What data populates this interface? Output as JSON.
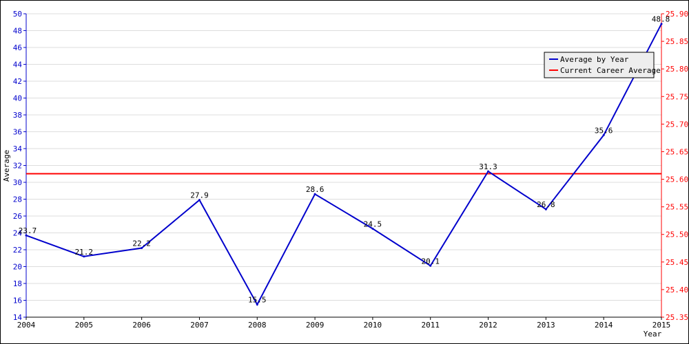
{
  "chart_data": {
    "type": "line",
    "title": "",
    "xlabel": "Year",
    "ylabel": "Average",
    "categories": [
      "2004",
      "2005",
      "2006",
      "2007",
      "2008",
      "2009",
      "2010",
      "2011",
      "2012",
      "2013",
      "2014",
      "2015"
    ],
    "y_ticks": [
      "14",
      "16",
      "18",
      "20",
      "22",
      "24",
      "26",
      "28",
      "30",
      "32",
      "34",
      "36",
      "38",
      "40",
      "42",
      "44",
      "46",
      "48",
      "50"
    ],
    "y2_ticks": [
      "25.35",
      "25.40",
      "25.45",
      "25.50",
      "25.55",
      "25.60",
      "25.65",
      "25.70",
      "25.75",
      "25.80",
      "25.85",
      "25.90"
    ],
    "ylim": [
      14,
      50
    ],
    "y2lim": [
      25.35,
      25.9
    ],
    "series": [
      {
        "name": "Average by Year",
        "color": "#0000cc",
        "axis": "left",
        "values": [
          23.7,
          21.2,
          22.2,
          27.9,
          15.5,
          28.6,
          24.5,
          20.1,
          31.3,
          26.8,
          35.6,
          48.8
        ],
        "labels": [
          "23.7",
          "21.2",
          "22.2",
          "27.9",
          "15.5",
          "28.6",
          "24.5",
          "20.1",
          "31.3",
          "26.8",
          "35.6",
          "48.8"
        ]
      },
      {
        "name": "Current Career Average",
        "color": "#ff0000",
        "axis": "right",
        "value": 25.61
      }
    ],
    "grid": true,
    "legend_position": "top-right",
    "left_axis_color": "#0000cc",
    "right_axis_color": "#ff0000"
  }
}
